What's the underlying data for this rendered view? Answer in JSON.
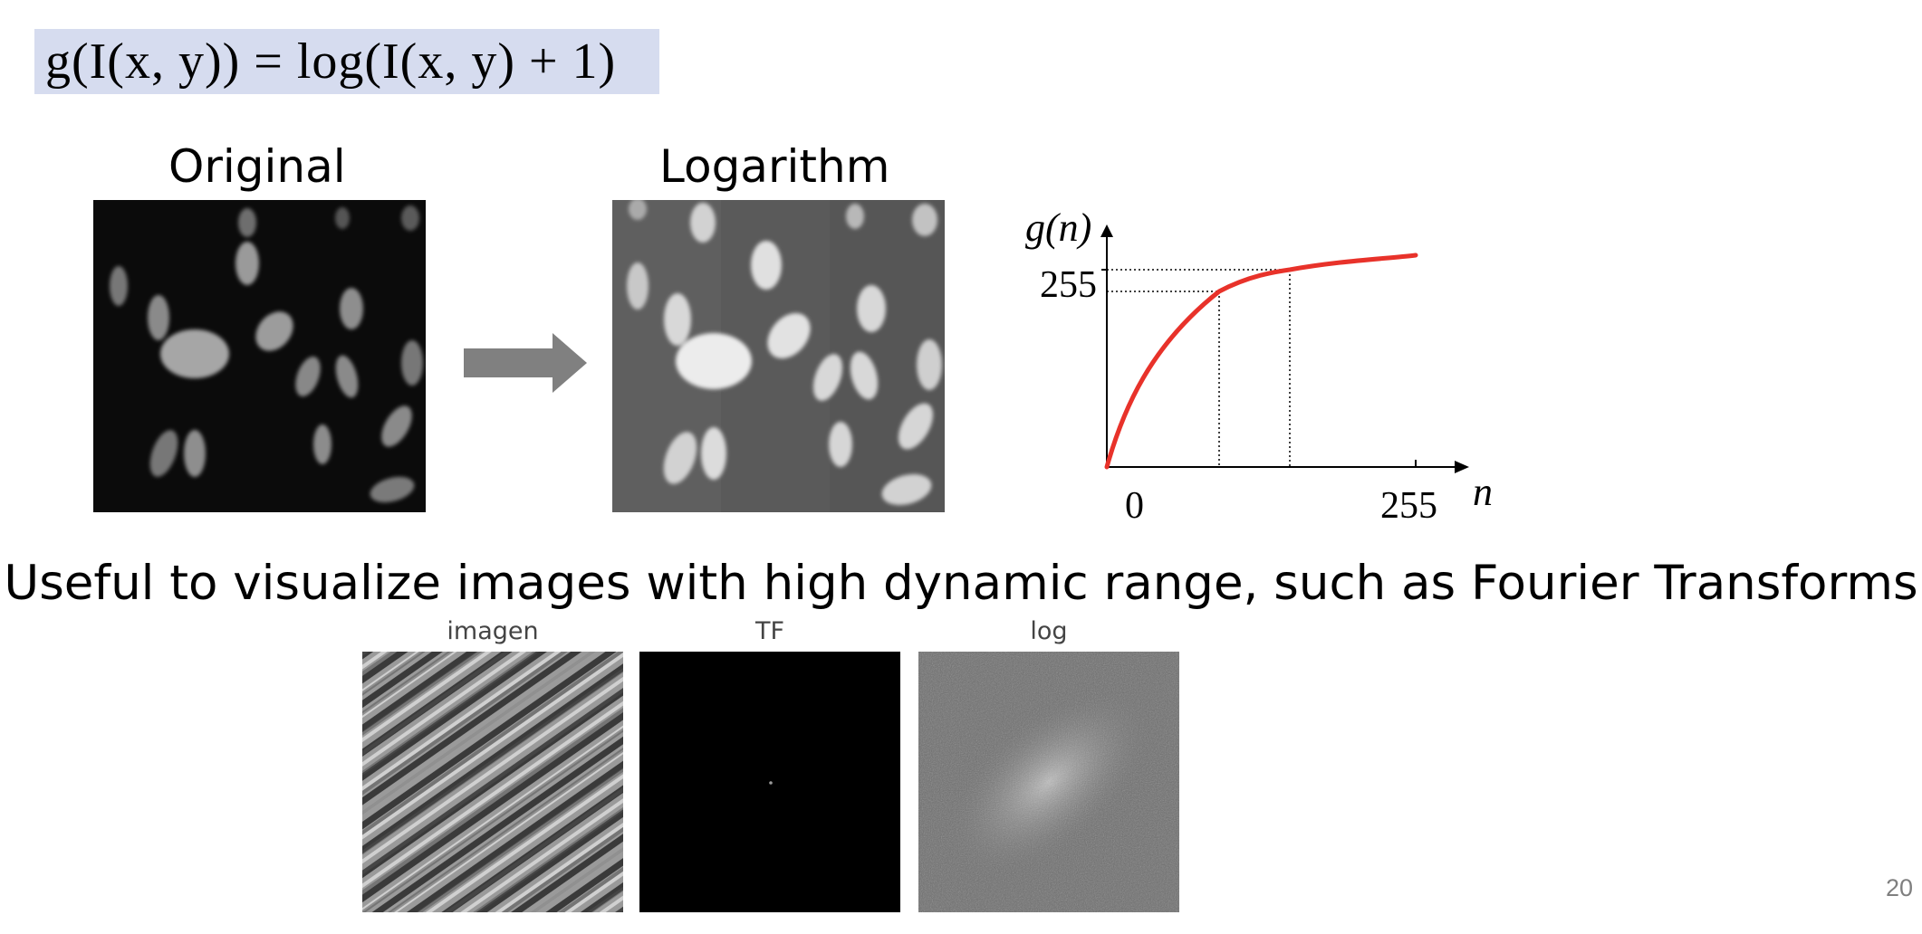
{
  "slide": {
    "formula": "g(I(x, y)) = log(I(x, y) + 1)",
    "original_label": "Original",
    "logarithm_label": "Logarithm",
    "subtitle": "Useful to visualize images with high dynamic range, such as Fourier Transforms",
    "thumbnails": [
      {
        "label": "imagen"
      },
      {
        "label": "TF"
      },
      {
        "label": "log"
      }
    ],
    "page_number": "20"
  },
  "graph": {
    "y_label": "g(n)",
    "y_tick": "255",
    "x_tick_start": "0",
    "x_tick_end": "255",
    "x_label": "n",
    "curve_color": "#e8322a"
  },
  "colors": {
    "formula_background": "#d6dcef",
    "arrow": "#808080"
  }
}
